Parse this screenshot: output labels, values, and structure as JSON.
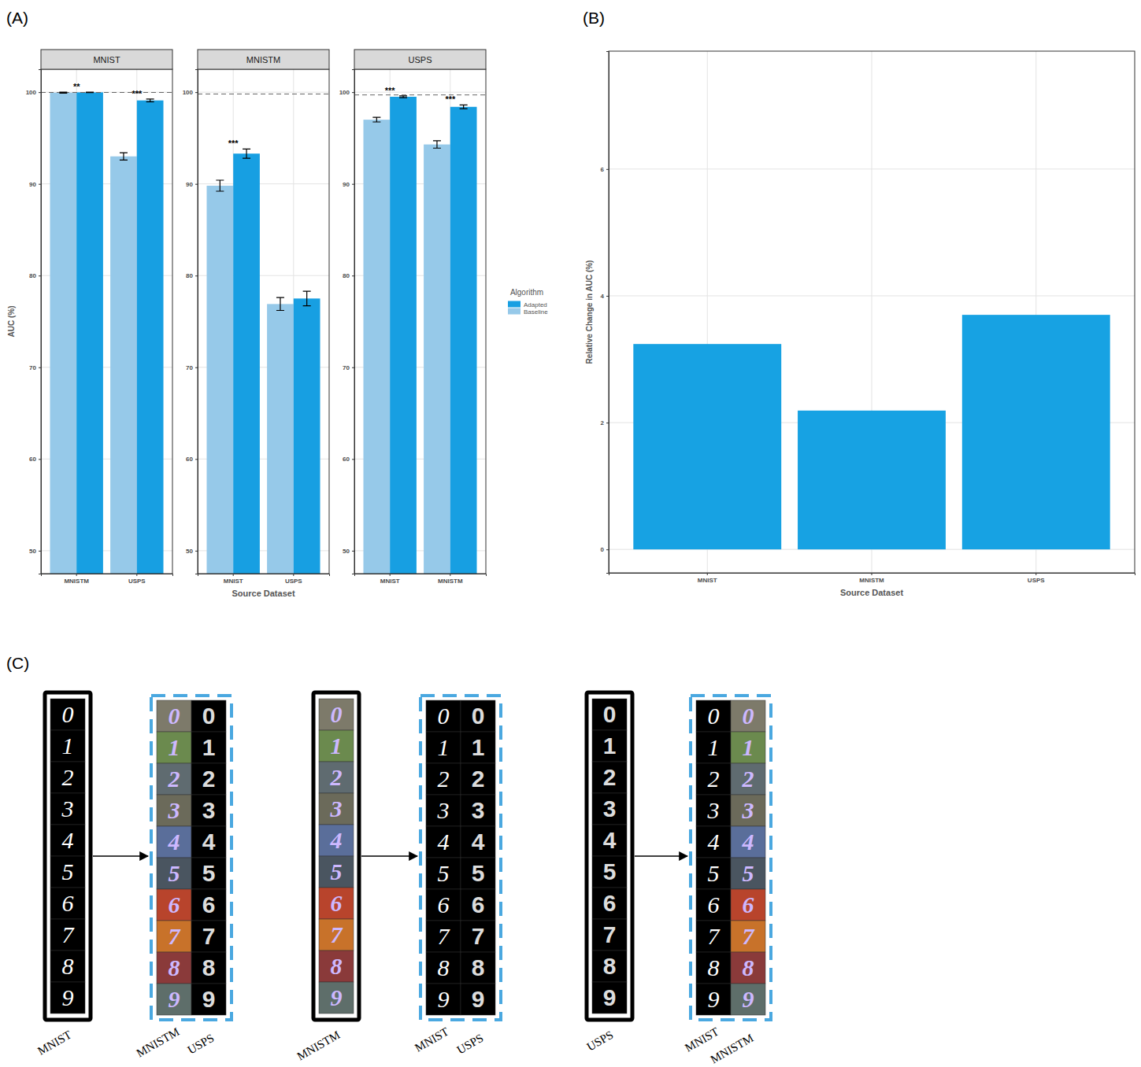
{
  "panel_labels": [
    "(A)",
    "(B)",
    "(C)"
  ],
  "chart_data": [
    {
      "type": "bar",
      "title": "MNIST",
      "categories": [
        "MNISTM",
        "USPS"
      ],
      "series": [
        {
          "name": "Baseline",
          "color": "#96c9e9",
          "values": [
            99.95,
            93.0
          ],
          "errors": [
            0.05,
            0.4
          ]
        },
        {
          "name": "Adapted",
          "color": "#179fe2",
          "values": [
            99.98,
            99.1
          ],
          "errors": [
            0.02,
            0.15
          ]
        }
      ],
      "significance": [
        "**",
        "***"
      ],
      "reference_line": 99.97,
      "ylim": [
        47.5,
        102.5
      ],
      "yticks": [
        50,
        60,
        70,
        80,
        90,
        100
      ],
      "grid": true,
      "y_label": "AUC (%)"
    },
    {
      "type": "bar",
      "title": "MNISTM",
      "categories": [
        "MNIST",
        "USPS"
      ],
      "series": [
        {
          "name": "Baseline",
          "color": "#96c9e9",
          "values": [
            89.8,
            76.9
          ],
          "errors": [
            0.6,
            0.7
          ]
        },
        {
          "name": "Adapted",
          "color": "#179fe2",
          "values": [
            93.3,
            77.5
          ],
          "errors": [
            0.5,
            0.8
          ]
        }
      ],
      "significance": [
        "***",
        null
      ],
      "reference_line": 99.8,
      "ylim": [
        47.5,
        102.5
      ],
      "yticks": [
        50,
        60,
        70,
        80,
        90,
        100
      ],
      "grid": true,
      "x_label": "Source Dataset"
    },
    {
      "type": "bar",
      "title": "USPS",
      "categories": [
        "MNIST",
        "MNISTM"
      ],
      "series": [
        {
          "name": "Baseline",
          "color": "#96c9e9",
          "values": [
            97.0,
            94.3
          ],
          "errors": [
            0.25,
            0.4
          ]
        },
        {
          "name": "Adapted",
          "color": "#179fe2",
          "values": [
            99.5,
            98.4
          ],
          "errors": [
            0.1,
            0.2
          ]
        }
      ],
      "significance": [
        "***",
        "***"
      ],
      "reference_line": 99.7,
      "ylim": [
        47.5,
        102.5
      ],
      "yticks": [
        50,
        60,
        70,
        80,
        90,
        100
      ],
      "grid": true,
      "legend": "right",
      "legend_title": "Algorithm"
    },
    {
      "type": "bar",
      "categories": [
        "MNIST",
        "MNISTM",
        "USPS"
      ],
      "values": [
        3.24,
        2.19,
        3.7
      ],
      "color": "#17a2e3",
      "ylim": [
        -0.37,
        7.86
      ],
      "yticks": [
        0,
        2,
        4,
        6
      ],
      "grid": true,
      "x_label": "Source Dataset",
      "y_label": "Relative Change in AUC (%)"
    }
  ],
  "image_panel": {
    "digits": [
      "0",
      "1",
      "2",
      "3",
      "4",
      "5",
      "6",
      "7",
      "8",
      "9"
    ],
    "groups": [
      {
        "source": "MNIST",
        "targets": [
          "MNISTM",
          "USPS"
        ]
      },
      {
        "source": "MNISTM",
        "targets": [
          "MNIST",
          "USPS"
        ]
      },
      {
        "source": "USPS",
        "targets": [
          "MNIST",
          "MNISTM"
        ]
      }
    ]
  }
}
